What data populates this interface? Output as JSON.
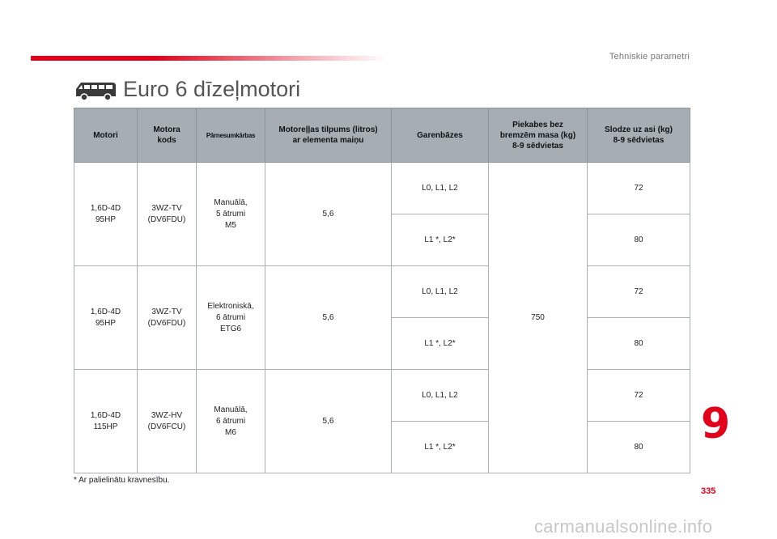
{
  "header": {
    "section_label": "Tehniskie parametri",
    "title": "Euro 6 dīzeļmotori",
    "title_icon": "van-icon"
  },
  "table": {
    "headers": [
      "Motori",
      "Motora\nkods",
      "Pārnesumkārbas",
      "Motoreļļas tilpums (litros)\nar elementa maiņu",
      "Garenbāzes",
      "Piekabes bez\nbremzēm masa (kg)\n8-9 sēdvietas",
      "Slodze uz asi (kg)\n8-9 sēdvietas"
    ],
    "engines": [
      {
        "motor": "1,6D-4D\n95HP",
        "code": "3WZ-TV\n(DV6FDU)",
        "gearbox": "Manuālā,\n5 ātrumi\nM5",
        "oil": "5,6",
        "rows": [
          {
            "wheelbase": "L0, L1, L2",
            "axle_load": "72"
          },
          {
            "wheelbase": "L1 *, L2*",
            "axle_load": "80"
          }
        ]
      },
      {
        "motor": "1,6D-4D\n95HP",
        "code": "3WZ-TV\n(DV6FDU)",
        "gearbox": "Elektroniskā,\n6 ātrumi\nETG6",
        "oil": "5,6",
        "rows": [
          {
            "wheelbase": "L0, L1, L2",
            "axle_load": "72"
          },
          {
            "wheelbase": "L1 *, L2*",
            "axle_load": "80"
          }
        ]
      },
      {
        "motor": "1,6D-4D\n115HP",
        "code": "3WZ-HV\n(DV6FCU)",
        "gearbox": "Manuālā,\n6 ātrumi\nM6",
        "oil": "5,6",
        "rows": [
          {
            "wheelbase": "L0, L1, L2",
            "axle_load": "72"
          },
          {
            "wheelbase": "L1 *, L2*",
            "axle_load": "80"
          }
        ]
      }
    ],
    "trailer_mass": "750"
  },
  "footnote": "* Ar palielinātu kravnesību.",
  "chapter_number": "9",
  "page_number": "335",
  "watermark": "carmanualsonline.info",
  "colors": {
    "accent": "#e2001a",
    "header_bg": "#a6aeb4",
    "title_text": "#555555"
  }
}
